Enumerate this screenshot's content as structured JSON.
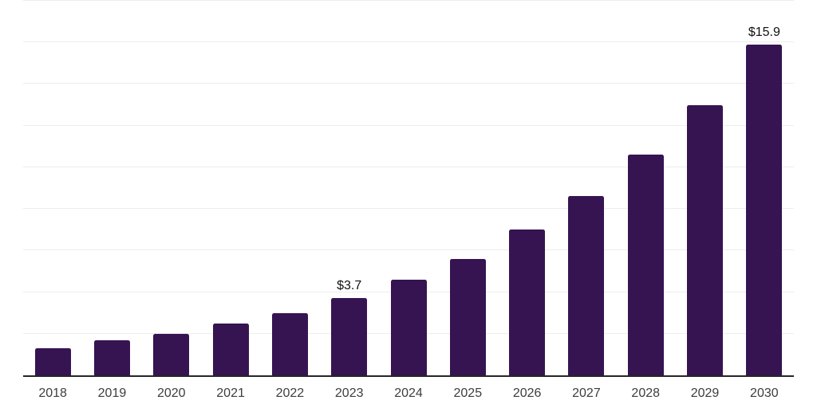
{
  "chart_data": {
    "type": "bar",
    "title": "",
    "xlabel": "",
    "ylabel": "",
    "categories": [
      "2018",
      "2019",
      "2020",
      "2021",
      "2022",
      "2023",
      "2024",
      "2025",
      "2026",
      "2027",
      "2028",
      "2029",
      "2030"
    ],
    "values": [
      1.3,
      1.7,
      2.0,
      2.5,
      3.0,
      3.7,
      4.6,
      5.6,
      7.0,
      8.6,
      10.6,
      13.0,
      15.9
    ],
    "data_labels": {
      "2023": "$3.7",
      "2030": "$15.9"
    },
    "ylim": [
      0,
      18
    ],
    "grid_step": 2,
    "grid": true,
    "y_axis_labels_visible": false,
    "legend_position": "none",
    "colors": {
      "bar": "#361452",
      "gridline": "#ededed",
      "axis_line": "#262626",
      "tick_label": "#3d3d3d",
      "data_label": "#111111",
      "background": "#ffffff"
    }
  }
}
